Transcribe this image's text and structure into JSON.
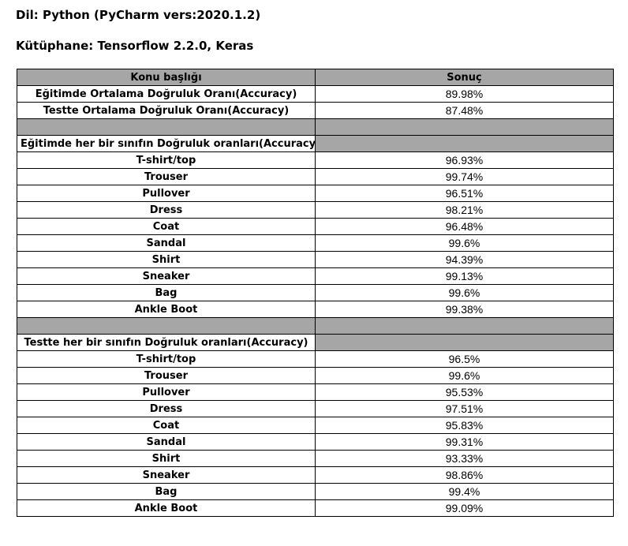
{
  "header": {
    "language": "Dil: Python (PyCharm vers:2020.1.2)",
    "library": "Kütüphane: Tensorflow 2.2.0, Keras"
  },
  "table": {
    "columns": [
      "Konu başlığı",
      "Sonuç"
    ],
    "summary": [
      {
        "label": "Eğitimde Ortalama Doğruluk Oranı(Accuracy)",
        "value": "89.98%"
      },
      {
        "label": "Testte Ortalama Doğruluk Oranı(Accuracy)",
        "value": "87.48%"
      }
    ],
    "train_section": {
      "title": "Eğitimde her bir sınıfın Doğruluk oranları(Accuracy)",
      "rows": [
        {
          "label": "T-shirt/top",
          "value": "96.93%"
        },
        {
          "label": "Trouser",
          "value": "99.74%"
        },
        {
          "label": "Pullover",
          "value": "96.51%"
        },
        {
          "label": "Dress",
          "value": "98.21%"
        },
        {
          "label": "Coat",
          "value": "96.48%"
        },
        {
          "label": "Sandal",
          "value": "99.6%"
        },
        {
          "label": "Shirt",
          "value": "94.39%"
        },
        {
          "label": "Sneaker",
          "value": "99.13%"
        },
        {
          "label": "Bag",
          "value": "99.6%"
        },
        {
          "label": "Ankle Boot",
          "value": "99.38%"
        }
      ]
    },
    "test_section": {
      "title": "Testte her bir sınıfın Doğruluk oranları(Accuracy)",
      "rows": [
        {
          "label": "T-shirt/top",
          "value": "96.5%"
        },
        {
          "label": "Trouser",
          "value": "99.6%"
        },
        {
          "label": "Pullover",
          "value": "95.53%"
        },
        {
          "label": "Dress",
          "value": "97.51%"
        },
        {
          "label": "Coat",
          "value": "95.83%"
        },
        {
          "label": "Sandal",
          "value": "99.31%"
        },
        {
          "label": "Shirt",
          "value": "93.33%"
        },
        {
          "label": "Sneaker",
          "value": "98.86%"
        },
        {
          "label": "Bag",
          "value": "99.4%"
        },
        {
          "label": "Ankle Boot",
          "value": "99.09%"
        }
      ]
    }
  },
  "colors": {
    "header_fill": "#a6a6a6",
    "border": "#000000",
    "text": "#000000"
  }
}
